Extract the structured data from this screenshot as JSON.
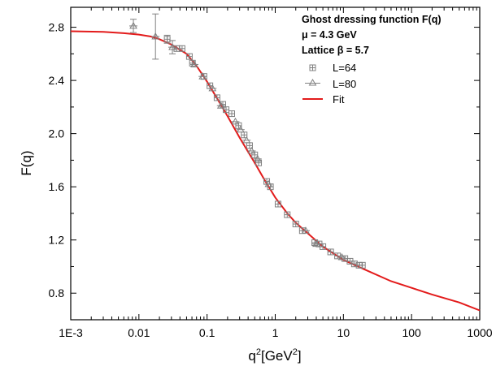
{
  "chart_data": {
    "type": "scatter",
    "xscale": "log",
    "xlim": [
      0.001,
      1000
    ],
    "ylim": [
      0.6,
      2.95
    ],
    "xticks": [
      0.001,
      0.01,
      0.1,
      1,
      10,
      100,
      1000
    ],
    "xtick_labels": [
      "1E-3",
      "0.01",
      "0.1",
      "1",
      "10",
      "100",
      "1000"
    ],
    "yticks": [
      0.8,
      1.2,
      1.6,
      2.0,
      2.4,
      2.8
    ],
    "ytick_labels": [
      "0.8",
      "1.2",
      "1.6",
      "2.0",
      "2.4",
      "2.8"
    ],
    "xlabel_base": "q",
    "xlabel_sup1": "2",
    "xlabel_unit": "[GeV",
    "xlabel_sup2": "2",
    "xlabel_end": "]",
    "ylabel": "F(q)",
    "grid": false,
    "legend_position": "top-right",
    "annotations": [
      "Ghost dressing function F(q)",
      "μ = 4.3 GeV",
      "Lattice β = 5.7"
    ],
    "series": [
      {
        "name": "L=64",
        "marker": "square-cross",
        "color": "#808080",
        "points": [
          [
            0.026,
            2.71
          ],
          [
            0.036,
            2.64
          ],
          [
            0.043,
            2.64
          ],
          [
            0.055,
            2.58
          ],
          [
            0.061,
            2.53
          ],
          [
            0.09,
            2.43
          ],
          [
            0.11,
            2.36
          ],
          [
            0.14,
            2.27
          ],
          [
            0.17,
            2.22
          ],
          [
            0.19,
            2.18
          ],
          [
            0.23,
            2.15
          ],
          [
            0.29,
            2.06
          ],
          [
            0.35,
            1.99
          ],
          [
            0.42,
            1.91
          ],
          [
            0.5,
            1.84
          ],
          [
            0.57,
            1.78
          ],
          [
            0.75,
            1.64
          ],
          [
            0.85,
            1.6
          ],
          [
            1.1,
            1.47
          ],
          [
            1.5,
            1.39
          ],
          [
            2.0,
            1.32
          ],
          [
            2.5,
            1.27
          ],
          [
            3.8,
            1.18
          ],
          [
            4.4,
            1.17
          ],
          [
            5.0,
            1.15
          ],
          [
            6.5,
            1.11
          ],
          [
            8.2,
            1.08
          ],
          [
            10.5,
            1.06
          ],
          [
            12.5,
            1.04
          ],
          [
            14.5,
            1.02
          ],
          [
            17.0,
            1.01
          ],
          [
            19.0,
            1.01
          ]
        ],
        "errors": [
          [
            0.026,
            2.71,
            0.03
          ]
        ]
      },
      {
        "name": "L=80",
        "marker": "triangle-cross",
        "color": "#808080",
        "points": [
          [
            0.0083,
            2.81
          ],
          [
            0.0175,
            2.73
          ],
          [
            0.031,
            2.65
          ],
          [
            0.065,
            2.52
          ],
          [
            0.086,
            2.43
          ],
          [
            0.12,
            2.34
          ],
          [
            0.16,
            2.21
          ],
          [
            0.26,
            2.09
          ],
          [
            0.31,
            2.03
          ],
          [
            0.38,
            1.95
          ],
          [
            0.45,
            1.87
          ],
          [
            0.55,
            1.81
          ],
          [
            0.8,
            1.62
          ],
          [
            2.8,
            1.27
          ],
          [
            4.0,
            1.17
          ],
          [
            9.5,
            1.07
          ]
        ],
        "errors": [
          [
            0.0083,
            2.81,
            0.05
          ],
          [
            0.0175,
            2.73,
            0.17
          ],
          [
            0.031,
            2.65,
            0.05
          ]
        ]
      },
      {
        "name": "Fit",
        "type": "line",
        "color": "#e31b1b",
        "points": [
          [
            0.001,
            2.77
          ],
          [
            0.003,
            2.765
          ],
          [
            0.006,
            2.755
          ],
          [
            0.01,
            2.745
          ],
          [
            0.015,
            2.73
          ],
          [
            0.02,
            2.71
          ],
          [
            0.03,
            2.67
          ],
          [
            0.05,
            2.6
          ],
          [
            0.07,
            2.51
          ],
          [
            0.1,
            2.39
          ],
          [
            0.15,
            2.24
          ],
          [
            0.2,
            2.13
          ],
          [
            0.3,
            1.97
          ],
          [
            0.5,
            1.78
          ],
          [
            0.7,
            1.65
          ],
          [
            1.0,
            1.52
          ],
          [
            1.5,
            1.4
          ],
          [
            2.0,
            1.33
          ],
          [
            3.0,
            1.25
          ],
          [
            5.0,
            1.15
          ],
          [
            10.0,
            1.05
          ],
          [
            20.0,
            0.98
          ],
          [
            50.0,
            0.89
          ],
          [
            100.0,
            0.84
          ],
          [
            200.0,
            0.79
          ],
          [
            500.0,
            0.73
          ],
          [
            1000.0,
            0.67
          ]
        ]
      }
    ]
  }
}
